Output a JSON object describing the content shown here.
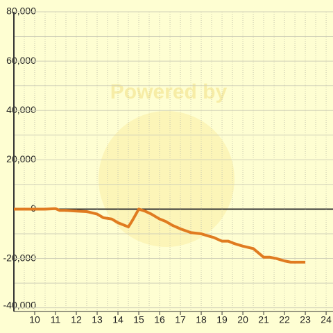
{
  "chart_data": {
    "type": "line",
    "watermark": "Powered by",
    "x": [
      9,
      10,
      10.5,
      11,
      11.2,
      11.5,
      12,
      12.5,
      13,
      13.3,
      13.7,
      14,
      14.5,
      14.7,
      15,
      15.3,
      15.6,
      16,
      16.3,
      16.6,
      17,
      17.5,
      18,
      18.3,
      18.6,
      19,
      19.3,
      19.6,
      20,
      20.5,
      21,
      21.3,
      21.6,
      22,
      22.3,
      23
    ],
    "series": [
      {
        "color": "#e07b20",
        "values": [
          0,
          0,
          0,
          200,
          -500,
          -500,
          -800,
          -1000,
          -2000,
          -3500,
          -4000,
          -5500,
          -7200,
          -4500,
          0,
          -800,
          -2000,
          -4000,
          -5000,
          -6500,
          -8000,
          -9500,
          -10000,
          -10800,
          -11500,
          -13000,
          -13000,
          -14000,
          -15000,
          -16000,
          -19500,
          -19500,
          -20000,
          -21000,
          -21500,
          -21500
        ]
      }
    ],
    "xlim": [
      9,
      24.33
    ],
    "xticks": [
      10,
      11,
      12,
      13,
      14,
      15,
      16,
      17,
      18,
      19,
      20,
      21,
      22,
      23,
      24
    ],
    "xminor": [
      9.5,
      10.5,
      11.5,
      12.5,
      13.5,
      14.5,
      15.5,
      16.5,
      17.5,
      18.5,
      19.5,
      20.5,
      21.5,
      22.5,
      23.5
    ],
    "ylim": [
      -41500,
      80000
    ],
    "yticks": [
      {
        "value": -40000,
        "label": "-40,000"
      },
      {
        "value": -20000,
        "label": "-20,000"
      },
      0,
      {
        "value": 20000,
        "label": "20,000"
      },
      {
        "value": 40000,
        "label": "40,000"
      },
      {
        "value": 60000,
        "label": "60,000"
      },
      {
        "value": 80000,
        "label": "80,000"
      }
    ],
    "yminor": [
      -30000,
      -10000,
      10000,
      30000,
      50000,
      70000
    ],
    "grid": true
  }
}
